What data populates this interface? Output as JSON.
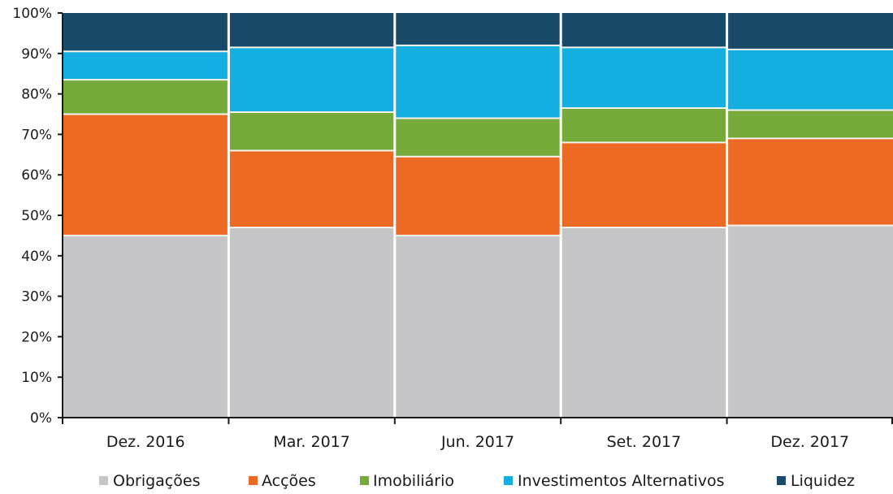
{
  "chart_data": {
    "type": "bar",
    "stacked": true,
    "categories": [
      "Dez. 2016",
      "Mar. 2017",
      "Jun. 2017",
      "Set. 2017",
      "Dez. 2017"
    ],
    "series": [
      {
        "name": "Obrigações",
        "color": "#c6c6c8",
        "values": [
          45,
          47,
          45,
          47,
          47.5
        ]
      },
      {
        "name": "Acções",
        "color": "#ec6a24",
        "values": [
          30,
          19,
          19.5,
          21,
          21.5
        ]
      },
      {
        "name": "Imobiliário",
        "color": "#76ab3c",
        "values": [
          8.5,
          9.5,
          9.5,
          8.5,
          7
        ]
      },
      {
        "name": "Investimentos Alternativos",
        "color": "#14aee0",
        "values": [
          7,
          16,
          18,
          15,
          15
        ]
      },
      {
        "name": "Liquidez",
        "color": "#194a6a",
        "values": [
          9.5,
          8.5,
          8,
          8.5,
          9
        ]
      }
    ],
    "y_ticks": [
      "0%",
      "10%",
      "20%",
      "30%",
      "40%",
      "50%",
      "60%",
      "70%",
      "80%",
      "90%",
      "100%"
    ],
    "ylim": [
      0,
      100
    ],
    "grid": false,
    "legend_position": "bottom"
  }
}
